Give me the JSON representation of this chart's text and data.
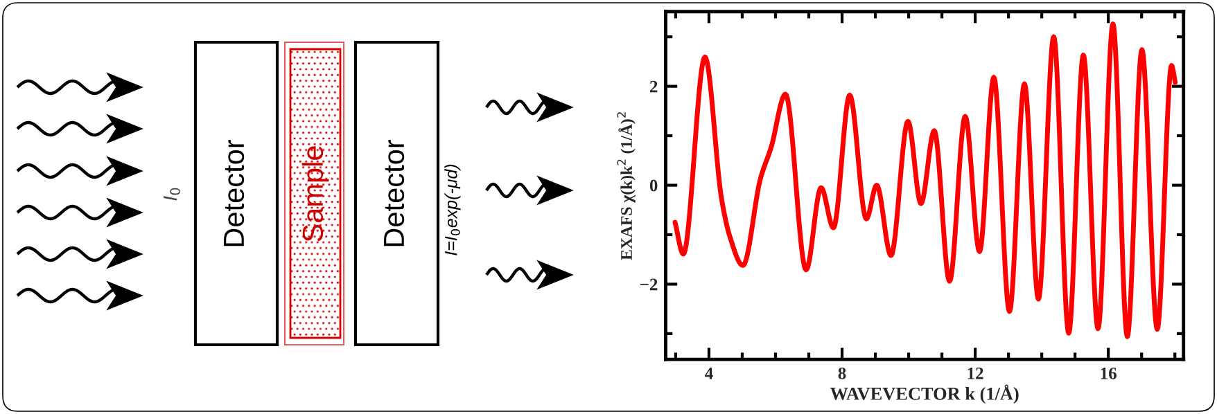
{
  "chart_data": {
    "type": "line",
    "xlabel": "WAVEVECTOR k (1/Å)",
    "ylabel": "EXAFS χ(k)k$^{2}$ (1/Å)$^{2}$",
    "x": [
      2.98,
      3.23,
      3.88,
      4.38,
      4.62,
      5.02,
      5.55,
      5.87,
      6.3,
      6.92,
      7.37,
      7.74,
      8.23,
      8.73,
      9.04,
      9.47,
      9.98,
      10.37,
      10.77,
      11.23,
      11.7,
      12.13,
      12.56,
      13.03,
      13.48,
      13.9,
      14.36,
      14.81,
      15.25,
      15.69,
      16.14,
      16.57,
      17.01,
      17.47,
      17.9,
      18.01
    ],
    "series": [
      {
        "color": "#ff0000",
        "values": [
          -0.75,
          -1.39,
          2.59,
          -0.28,
          -1.02,
          -1.62,
          0.14,
          0.77,
          1.84,
          -1.71,
          -0.05,
          -0.86,
          1.82,
          -0.68,
          0.0,
          -1.42,
          1.29,
          -0.37,
          1.1,
          -1.94,
          1.39,
          -1.34,
          2.18,
          -2.55,
          2.05,
          -2.3,
          3.0,
          -2.99,
          2.63,
          -2.9,
          3.26,
          -3.06,
          2.74,
          -2.91,
          2.42,
          2.08
        ]
      }
    ],
    "xlim": [
      2.7,
      18.26
    ],
    "ylim": [
      -3.52,
      3.51
    ],
    "xticks": [
      4,
      8,
      12,
      16
    ],
    "yticks": [
      {
        "value": -2,
        "label": "−2"
      },
      0,
      2
    ],
    "annotations": [
      "I$_{0}$",
      "Detector",
      "Sample",
      "Detector",
      "I=I$_{0}$exp(-μd)"
    ]
  }
}
